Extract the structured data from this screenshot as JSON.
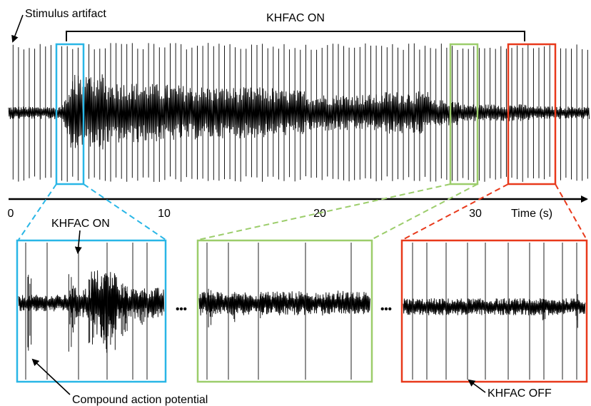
{
  "annotations": {
    "stimulus_artifact": "Stimulus artifact",
    "khfac_on_bracket": "KHFAC ON",
    "khfac_on_inset": "KHFAC ON",
    "compound_action_potential": "Compound action potential",
    "khfac_off": "KHFAC OFF",
    "ellipsis": "•••"
  },
  "time_axis": {
    "label": "Time (s)",
    "ticks": [
      "0",
      "10",
      "20",
      "30"
    ],
    "range": [
      0,
      38
    ]
  },
  "trace": {
    "stimulus_period_s": 0.35,
    "khfac_on_s": [
      3.5,
      33.5
    ]
  },
  "panels": [
    {
      "id": "blue",
      "color": "#29b6e6",
      "window_s": [
        3.0,
        4.9
      ]
    },
    {
      "id": "green",
      "color": "#9ccd6b",
      "window_s": [
        28.5,
        30.3
      ]
    },
    {
      "id": "red",
      "color": "#e8391b",
      "window_s": [
        32.3,
        34.8
      ]
    }
  ]
}
